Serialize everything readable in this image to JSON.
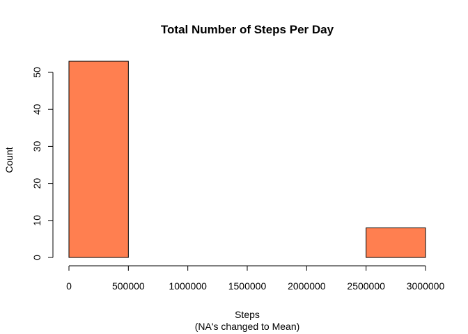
{
  "chart_data": {
    "type": "bar",
    "title": "Total Number of Steps Per Day",
    "xlabel": "Steps",
    "xlabel_sub": "(NA's changed to Mean)",
    "ylabel": "Count",
    "bins": [
      {
        "x_start": 0,
        "x_end": 500000,
        "count": 53
      },
      {
        "x_start": 500000,
        "x_end": 1000000,
        "count": 0
      },
      {
        "x_start": 1000000,
        "x_end": 1500000,
        "count": 0
      },
      {
        "x_start": 1500000,
        "x_end": 2000000,
        "count": 0
      },
      {
        "x_start": 2000000,
        "x_end": 2500000,
        "count": 0
      },
      {
        "x_start": 2500000,
        "x_end": 3000000,
        "count": 8
      }
    ],
    "xlim": [
      0,
      3000000
    ],
    "ylim": [
      0,
      53
    ],
    "xticks": [
      0,
      500000,
      1000000,
      1500000,
      2000000,
      2500000,
      3000000
    ],
    "yticks": [
      0,
      10,
      20,
      30,
      40,
      50
    ],
    "bar_color": "#FF7F50",
    "grid": false
  }
}
